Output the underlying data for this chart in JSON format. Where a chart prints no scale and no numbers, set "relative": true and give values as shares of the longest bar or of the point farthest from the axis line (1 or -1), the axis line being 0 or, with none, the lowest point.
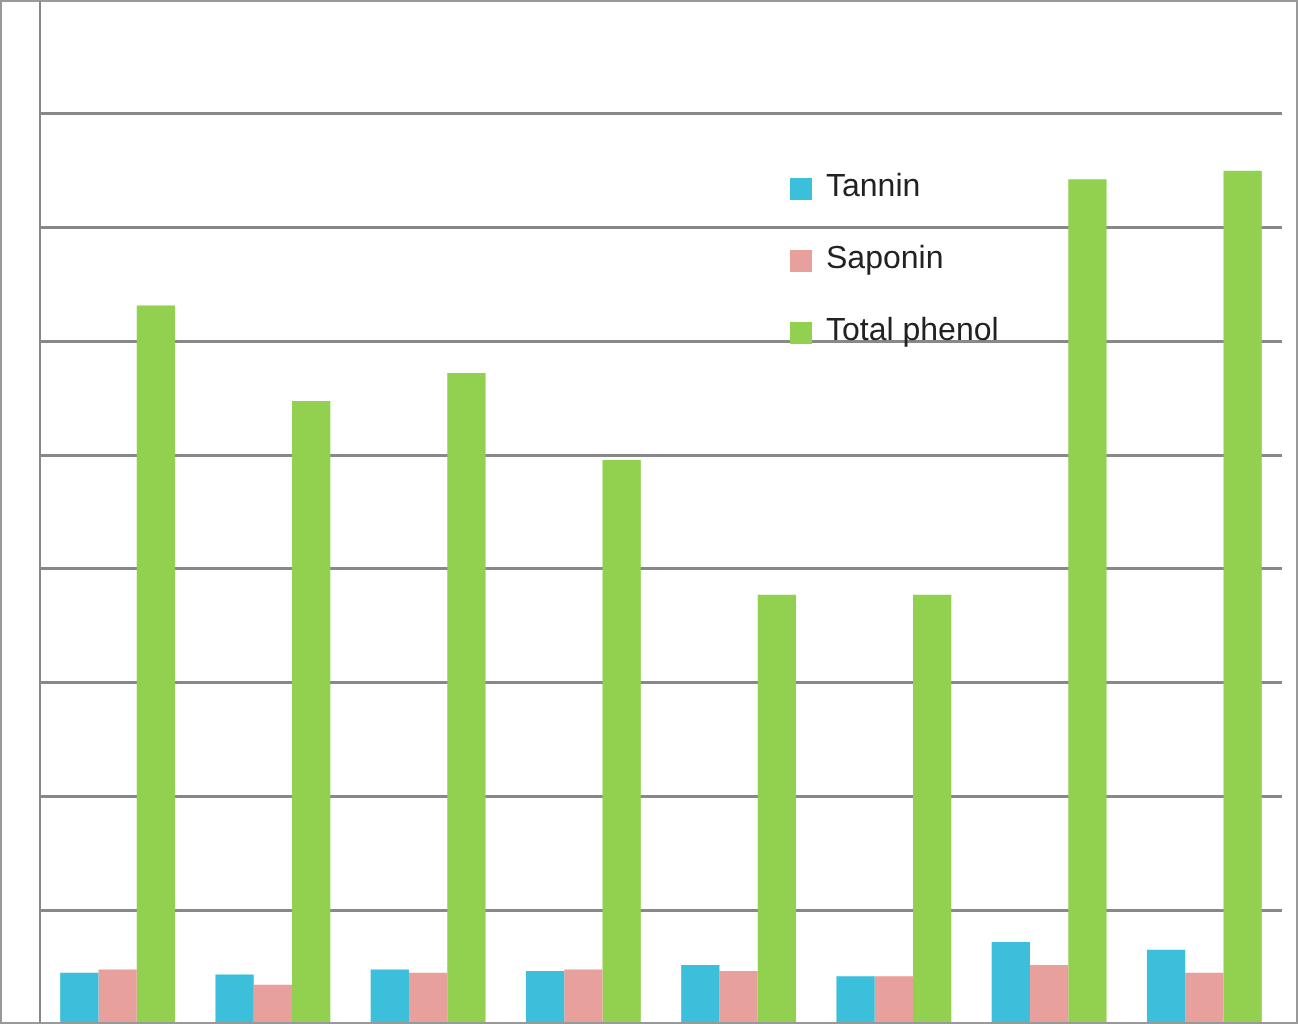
{
  "chart_data": {
    "type": "bar",
    "relative": true,
    "categories": [
      null,
      null,
      null,
      null,
      null,
      null,
      null,
      null
    ],
    "series": [
      {
        "name": "Tannin",
        "color": "#3cbfdb",
        "values": [
          0.06,
          0.058,
          0.064,
          0.062,
          0.069,
          0.056,
          0.096,
          0.087
        ]
      },
      {
        "name": "Saponin",
        "color": "#e8a09c",
        "values": [
          0.064,
          0.046,
          0.06,
          0.064,
          0.062,
          0.056,
          0.069,
          0.06
        ]
      },
      {
        "name": "Total phenol",
        "color": "#92d050",
        "values": [
          0.842,
          0.73,
          0.763,
          0.661,
          0.503,
          0.503,
          0.99,
          1
        ]
      }
    ],
    "grid": "y",
    "legend": "top right"
  }
}
